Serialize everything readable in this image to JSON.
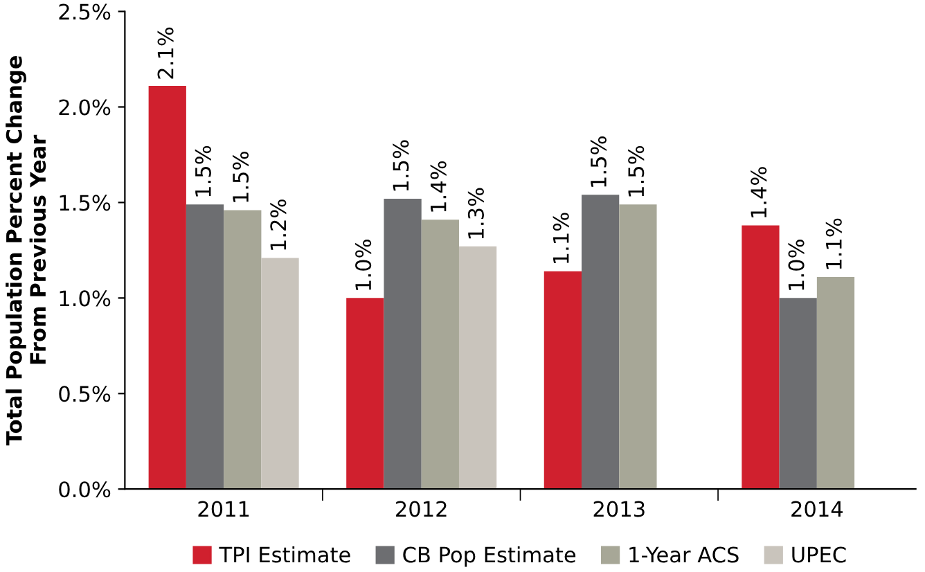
{
  "chart_data": {
    "type": "bar",
    "ylabel": "Total Population Percent Change\nFrom Previous Year",
    "categories": [
      "2011",
      "2012",
      "2013",
      "2014"
    ],
    "series": [
      {
        "name": "TPI Estimate",
        "color": "#d0202e",
        "values": [
          2.11,
          1.0,
          1.14,
          1.38
        ],
        "value_labels": [
          "2.1%",
          "1.0%",
          "1.1%",
          "1.4%"
        ]
      },
      {
        "name": "CB Pop Estimate",
        "color": "#6d6e71",
        "values": [
          1.49,
          1.52,
          1.54,
          1.0
        ],
        "value_labels": [
          "1.5%",
          "1.5%",
          "1.5%",
          "1.0%"
        ]
      },
      {
        "name": "1-Year ACS",
        "color": "#a7a797",
        "values": [
          1.46,
          1.41,
          1.49,
          1.11
        ],
        "value_labels": [
          "1.5%",
          "1.4%",
          "1.5%",
          "1.1%"
        ]
      },
      {
        "name": "UPEC",
        "color": "#c9c4bc",
        "values": [
          1.21,
          1.27,
          null,
          null
        ],
        "value_labels": [
          "1.2%",
          "1.3%",
          null,
          null
        ]
      }
    ],
    "ylim": [
      0,
      2.5
    ],
    "yticks": [
      {
        "value": 0,
        "label": "0.0%"
      },
      {
        "value": 0.5,
        "label": "0.5%"
      },
      {
        "value": 1.0,
        "label": "1.0%"
      },
      {
        "value": 1.5,
        "label": "1.5%"
      },
      {
        "value": 2.0,
        "label": "2.0%"
      },
      {
        "value": 2.5,
        "label": "2.5%"
      }
    ],
    "grid": false,
    "legend": "bottom"
  }
}
